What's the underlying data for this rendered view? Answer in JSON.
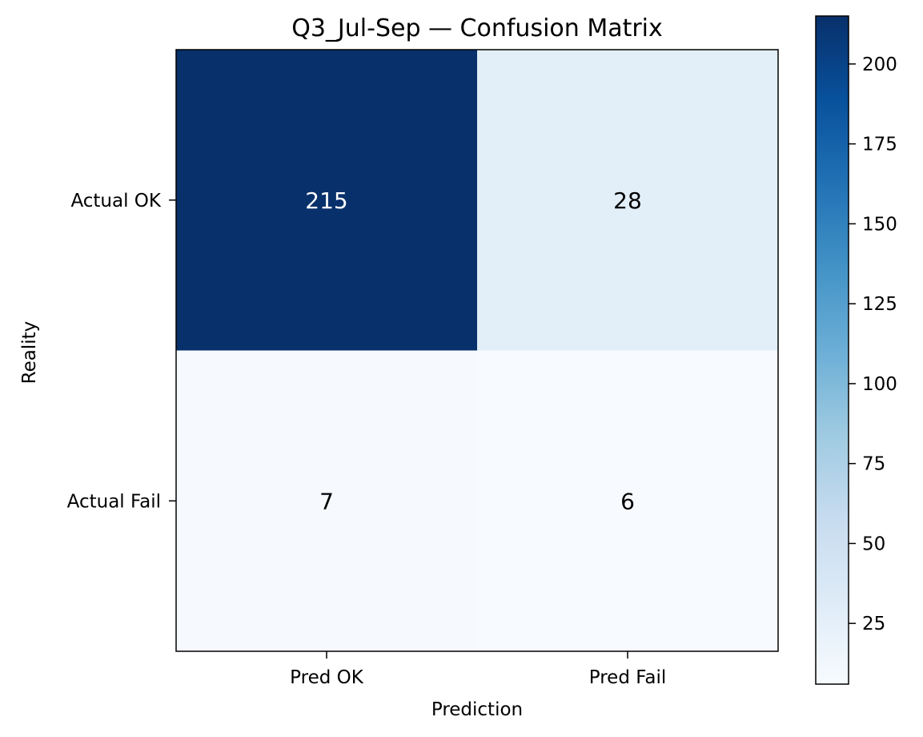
{
  "chart_data": {
    "type": "heatmap",
    "title": "Q3_Jul-Sep — Confusion Matrix",
    "xlabel": "Prediction",
    "ylabel": "Reality",
    "x_categories": [
      "Pred OK",
      "Pred Fail"
    ],
    "y_categories": [
      "Actual OK",
      "Actual Fail"
    ],
    "values": [
      [
        215,
        28
      ],
      [
        7,
        6
      ]
    ],
    "colormap": "Blues",
    "colormap_stops": [
      "#f7fbff",
      "#deebf7",
      "#c6dbef",
      "#9ecae1",
      "#6baed6",
      "#4292c6",
      "#2171b5",
      "#08519c",
      "#08306b"
    ],
    "colorbar": {
      "range": [
        6,
        215
      ],
      "ticks": [
        25,
        50,
        75,
        100,
        125,
        150,
        175,
        200
      ]
    },
    "grid": false
  }
}
